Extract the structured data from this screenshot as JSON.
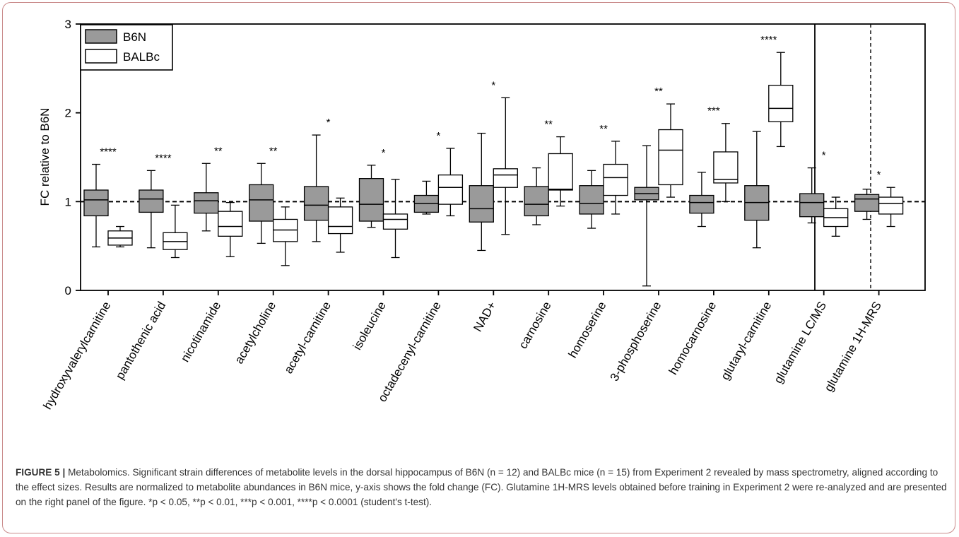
{
  "chart_data": {
    "type": "box",
    "ylabel": "FC relative to B6N",
    "ylim": [
      0,
      3
    ],
    "yticks": [
      0,
      1,
      2,
      3
    ],
    "reference_line": 1,
    "legend": {
      "position": "top-left",
      "entries": [
        {
          "name": "B6N",
          "color": "#9a9a9a"
        },
        {
          "name": "BALBc",
          "color": "#ffffff"
        }
      ]
    },
    "categories": [
      {
        "label": "hydroxyvalerylcarnitine",
        "sig": "****",
        "B6N": {
          "min": 0.49,
          "q1": 0.84,
          "median": 1.02,
          "q3": 1.13,
          "max": 1.42
        },
        "BALBc": {
          "min": 0.49,
          "q1": 0.51,
          "median": 0.59,
          "q3": 0.67,
          "max": 0.72
        }
      },
      {
        "label": "pantothenic acid",
        "sig": "****",
        "B6N": {
          "min": 0.48,
          "q1": 0.88,
          "median": 1.03,
          "q3": 1.13,
          "max": 1.35
        },
        "BALBc": {
          "min": 0.37,
          "q1": 0.46,
          "median": 0.55,
          "q3": 0.65,
          "max": 0.96
        }
      },
      {
        "label": "nicotinamide",
        "sig": "**",
        "B6N": {
          "min": 0.67,
          "q1": 0.87,
          "median": 1.01,
          "q3": 1.1,
          "max": 1.43
        },
        "BALBc": {
          "min": 0.38,
          "q1": 0.61,
          "median": 0.72,
          "q3": 0.89,
          "max": 0.99
        }
      },
      {
        "label": "acetylcholine",
        "sig": "**",
        "B6N": {
          "min": 0.53,
          "q1": 0.78,
          "median": 1.02,
          "q3": 1.19,
          "max": 1.43
        },
        "BALBc": {
          "min": 0.28,
          "q1": 0.55,
          "median": 0.68,
          "q3": 0.8,
          "max": 0.94
        }
      },
      {
        "label": "acetyl-carnitine",
        "sig": "*",
        "B6N": {
          "min": 0.55,
          "q1": 0.79,
          "median": 0.96,
          "q3": 1.17,
          "max": 1.75
        },
        "BALBc": {
          "min": 0.43,
          "q1": 0.64,
          "median": 0.72,
          "q3": 0.94,
          "max": 1.04
        }
      },
      {
        "label": "isoleucine",
        "sig": "*",
        "B6N": {
          "min": 0.71,
          "q1": 0.78,
          "median": 0.97,
          "q3": 1.26,
          "max": 1.41
        },
        "BALBc": {
          "min": 0.37,
          "q1": 0.69,
          "median": 0.8,
          "q3": 0.86,
          "max": 1.25
        }
      },
      {
        "label": "octadecenyl-carnitine",
        "sig": "*",
        "B6N": {
          "min": 0.86,
          "q1": 0.88,
          "median": 0.98,
          "q3": 1.07,
          "max": 1.23
        },
        "BALBc": {
          "min": 0.84,
          "q1": 0.97,
          "median": 1.16,
          "q3": 1.3,
          "max": 1.6
        }
      },
      {
        "label": "NAD+",
        "label_sup": "+",
        "sig": "*",
        "B6N": {
          "min": 0.45,
          "q1": 0.77,
          "median": 0.92,
          "q3": 1.18,
          "max": 1.77
        },
        "BALBc": {
          "min": 0.63,
          "q1": 1.16,
          "median": 1.3,
          "q3": 1.37,
          "max": 2.17
        }
      },
      {
        "label": "carnosine",
        "sig": "**",
        "B6N": {
          "min": 0.74,
          "q1": 0.84,
          "median": 0.97,
          "q3": 1.17,
          "max": 1.38
        },
        "BALBc": {
          "min": 0.95,
          "q1": 1.13,
          "median": 1.14,
          "q3": 1.54,
          "max": 1.73
        }
      },
      {
        "label": "homoserine",
        "sig": "**",
        "B6N": {
          "min": 0.7,
          "q1": 0.86,
          "median": 0.98,
          "q3": 1.18,
          "max": 1.35
        },
        "BALBc": {
          "min": 0.86,
          "q1": 1.07,
          "median": 1.27,
          "q3": 1.42,
          "max": 1.68
        }
      },
      {
        "label": "3-phosphoserine",
        "sig": "**",
        "B6N": {
          "min": 0.05,
          "q1": 1.02,
          "median": 1.09,
          "q3": 1.16,
          "max": 1.63
        },
        "BALBc": {
          "min": 1.05,
          "q1": 1.19,
          "median": 1.58,
          "q3": 1.81,
          "max": 2.1
        }
      },
      {
        "label": "homocarnosine",
        "sig": "***",
        "B6N": {
          "min": 0.72,
          "q1": 0.87,
          "median": 0.99,
          "q3": 1.07,
          "max": 1.33
        },
        "BALBc": {
          "min": 1.0,
          "q1": 1.21,
          "median": 1.25,
          "q3": 1.56,
          "max": 1.88
        }
      },
      {
        "label": "glutaryl-carnitine",
        "sig": "****",
        "B6N": {
          "min": 0.48,
          "q1": 0.79,
          "median": 0.99,
          "q3": 1.18,
          "max": 1.79
        },
        "BALBc": {
          "min": 1.62,
          "q1": 1.9,
          "median": 2.05,
          "q3": 2.31,
          "max": 2.68
        }
      },
      {
        "label": "glutamine LC/MS",
        "sig": "*",
        "B6N": {
          "min": 0.76,
          "q1": 0.83,
          "median": 0.99,
          "q3": 1.09,
          "max": 1.38
        },
        "BALBc": {
          "min": 0.61,
          "q1": 0.72,
          "median": 0.82,
          "q3": 0.92,
          "max": 1.05
        }
      },
      {
        "label": "glutamine 1H-MRS",
        "label_sup": "1",
        "sig": "*",
        "B6N": {
          "min": 0.8,
          "q1": 0.89,
          "median": 1.03,
          "q3": 1.08,
          "max": 1.14
        },
        "BALBc": {
          "min": 0.72,
          "q1": 0.86,
          "median": 0.98,
          "q3": 1.05,
          "max": 1.16
        }
      }
    ]
  },
  "caption": {
    "figure_label": "FIGURE 5 |",
    "text": "Metabolomics. Significant strain differences of metabolite levels in the dorsal hippocampus of B6N (n = 12) and BALBc mice (n = 15) from Experiment 2 revealed by mass spectrometry, aligned according to the effect sizes. Results are normalized to metabolite abundances in B6N mice, y-axis shows the fold change (FC). Glutamine 1H-MRS levels obtained before training in Experiment 2 were re-analyzed and are presented on the right panel of the figure. *p < 0.05, **p < 0.01, ***p < 0.001, ****p < 0.0001 (student's t-test)."
  }
}
